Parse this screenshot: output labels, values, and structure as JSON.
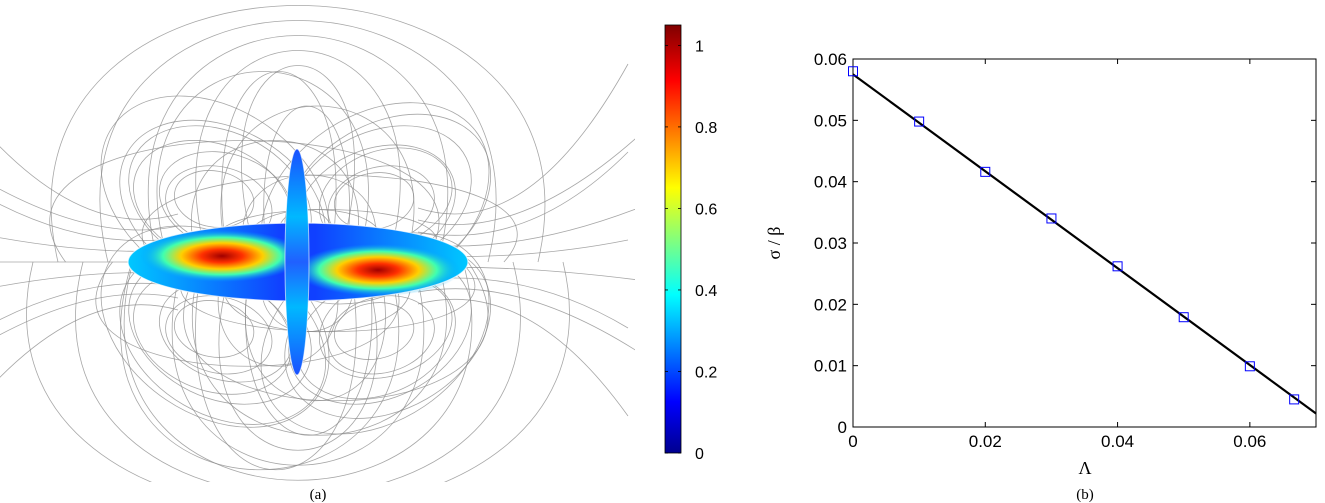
{
  "panel_a": {
    "caption": "(a)",
    "colorbar": {
      "ticks": [
        "1",
        "0.8",
        "0.6",
        "0.4",
        "0.2",
        "0"
      ],
      "colormap": [
        "#00008f",
        "#0000ff",
        "#00ffff",
        "#ffff00",
        "#ff0000",
        "#800000"
      ]
    }
  },
  "panel_b": {
    "caption": "(b)",
    "xlabel": "Λ",
    "ylabel": "σ / β"
  },
  "chart_data": [
    {
      "type": "heatmap",
      "description_free": true,
      "colorbar_range": [
        0,
        1.05
      ],
      "colorbar_ticks": [
        0,
        0.2,
        0.4,
        0.6,
        0.8,
        1
      ]
    },
    {
      "type": "scatter",
      "xlabel": "Λ",
      "ylabel": "σ / β",
      "xlim": [
        0,
        0.07
      ],
      "ylim": [
        0,
        0.06
      ],
      "xticks": [
        0,
        0.02,
        0.04,
        0.06
      ],
      "xtick_labels": [
        "0",
        "0.02",
        "0.04",
        "0.06"
      ],
      "yticks": [
        0,
        0.01,
        0.02,
        0.03,
        0.04,
        0.05,
        0.06
      ],
      "ytick_labels": [
        "0",
        "0.01",
        "0.02",
        "0.03",
        "0.04",
        "0.05",
        "0.06"
      ],
      "grid": false,
      "series": [
        {
          "marker": "square",
          "color": "#0000ff",
          "x": [
            0,
            0.01,
            0.02,
            0.03,
            0.04,
            0.05,
            0.06,
            0.0667
          ],
          "y": [
            0.058,
            0.0498,
            0.0416,
            0.034,
            0.0262,
            0.0179,
            0.0099,
            0.0045
          ]
        },
        {
          "line": "solid",
          "color": "#000000",
          "x": [
            0,
            0.07
          ],
          "y": [
            0.0575,
            0.0022
          ]
        }
      ]
    }
  ]
}
